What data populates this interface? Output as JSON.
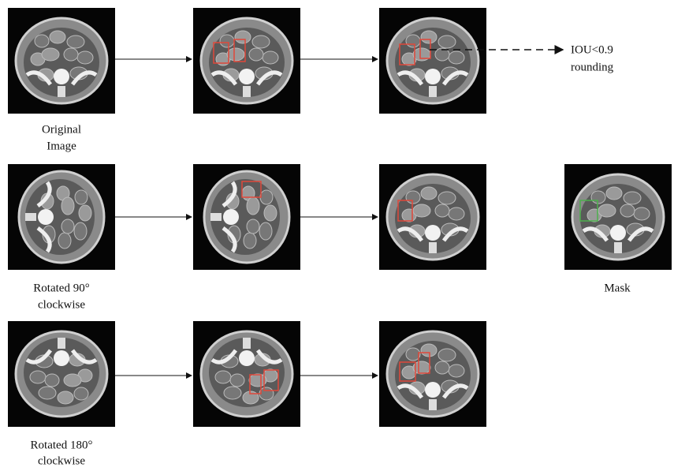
{
  "rows": [
    {
      "label": [
        "Original",
        "Image"
      ]
    },
    {
      "label": [
        "Rotated 90°",
        "clockwise"
      ]
    },
    {
      "label": [
        "Rotated 180°",
        "clockwise"
      ]
    }
  ],
  "annotation": {
    "lines": [
      "IOU<0.9",
      "rounding"
    ]
  },
  "mask": {
    "label": "Mask"
  }
}
